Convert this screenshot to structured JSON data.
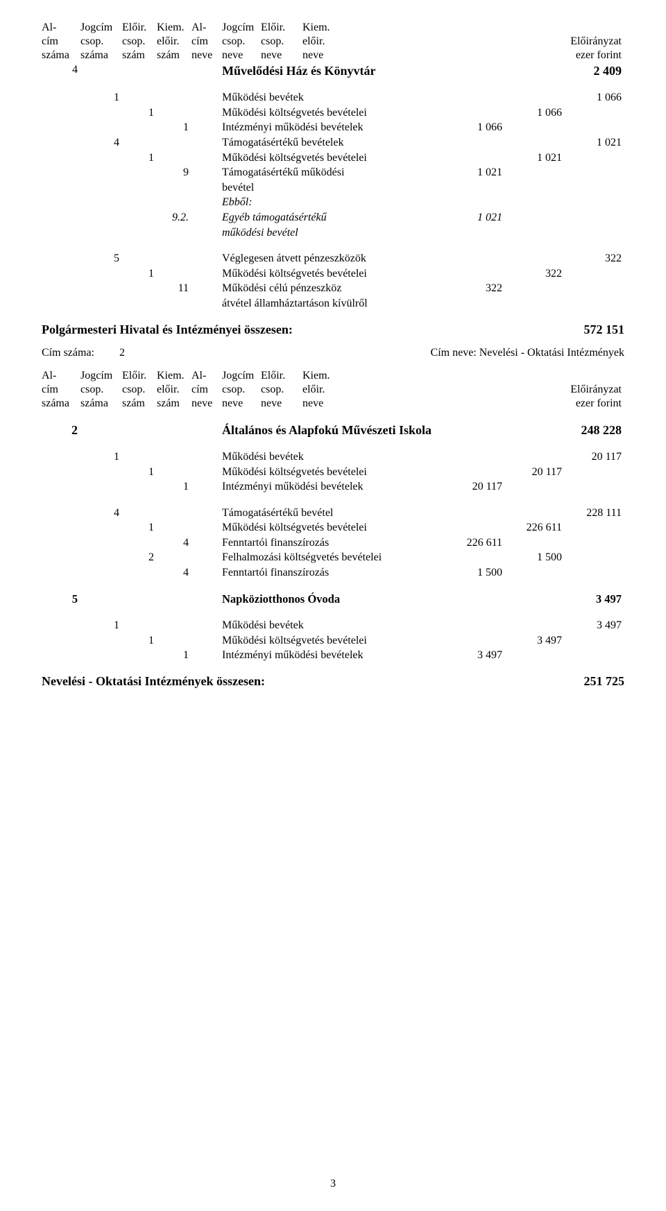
{
  "page_number": "3",
  "header": {
    "col1_l1": "Al-",
    "col1_l2": "cím",
    "col1_l3": "száma",
    "col2_l1": "Jogcím",
    "col2_l2": "csop.",
    "col2_l3": "száma",
    "col3_l1": "Előir.",
    "col3_l2": "csop.",
    "col3_l3": "szám",
    "col4_l1": "Kiem.",
    "col4_l2": "előir.",
    "col4_l3": "szám",
    "col5_l1": "Al-",
    "col5_l2": "cím",
    "col5_l3": "neve",
    "col6_l1": "Jogcím",
    "col6_l2": "csop.",
    "col6_l3": "neve",
    "col7_l1": "Előir.",
    "col7_l2": "csop.",
    "col7_l3": "neve",
    "col8_l1": "Kiem.",
    "col8_l2": "előir.",
    "col8_l3": "neve",
    "right_l2": "Előirányzat",
    "right_l3": "ezer forint"
  },
  "section4": {
    "code": "4",
    "title": "Művelődési Ház és Könyvtár",
    "total": "2 409",
    "r1": {
      "code": "1",
      "label": "Működési bevétek",
      "v": "1 066"
    },
    "r2": {
      "code": "1",
      "label": "Működési költségvetés bevételei",
      "v": "1 066"
    },
    "r3": {
      "code": "1",
      "label": "Intézményi működési bevételek",
      "v": "1 066"
    },
    "r4": {
      "code": "4",
      "label": "Támogatásértékű bevételek",
      "v": "1 021"
    },
    "r5": {
      "code": "1",
      "label": "Működési költségvetés bevételei",
      "v": "1 021"
    },
    "r6": {
      "code": "9",
      "label1": "Támogatásértékű működési",
      "label2": "bevétel",
      "v": "1 021"
    },
    "r7": {
      "label": "Ebből:"
    },
    "r8": {
      "code": "9.2.",
      "label1": "Egyéb támogatásértékű",
      "label2": "működési bevétel",
      "v": "1 021"
    }
  },
  "section5a": {
    "r1": {
      "code": "5",
      "label": "Véglegesen átvett pénzeszközök",
      "v": "322"
    },
    "r2": {
      "code": "1",
      "label": "Működési költségvetés bevételei",
      "v": "322"
    },
    "r3": {
      "code": "11",
      "label1": "Működési célú pénzeszköz",
      "label2": "átvétel államháztartáson kívülről",
      "v": "322"
    }
  },
  "summary1": {
    "label": "Polgármesteri Hivatal és Intézményei összesen:",
    "v": "572 151"
  },
  "cim2": {
    "left_label": "Cím száma:",
    "left_v": "2",
    "right": "Cím neve: Nevelési - Oktatási Intézmények"
  },
  "section2": {
    "code": "2",
    "title": "Általános és Alapfokú Művészeti Iskola",
    "total": "248 228",
    "r1": {
      "code": "1",
      "label": "Működési bevétek",
      "v": "20 117"
    },
    "r2": {
      "code": "1",
      "label": "Működési költségvetés bevételei",
      "v": "20 117"
    },
    "r3": {
      "code": "1",
      "label": "Intézményi működési bevételek",
      "v": "20 117"
    },
    "r4": {
      "code": "4",
      "label": "Támogatásértékű bevétel",
      "v": "228 111"
    },
    "r5": {
      "code": "1",
      "label": "Működési költségvetés bevételei",
      "v": "226 611"
    },
    "r6": {
      "code": "4",
      "label": "Fenntartói finanszírozás",
      "v": "226 611"
    },
    "r7": {
      "code": "2",
      "label": "Felhalmozási költségvetés bevételei",
      "v": "1 500"
    },
    "r8": {
      "code": "4",
      "label": "Fenntartói finanszírozás",
      "v": "1 500"
    }
  },
  "section5b": {
    "code": "5",
    "title": "Napköziotthonos Óvoda",
    "total": "3 497",
    "r1": {
      "code": "1",
      "label": "Működési bevétek",
      "v": "3 497"
    },
    "r2": {
      "code": "1",
      "label": "Működési költségvetés bevételei",
      "v": "3 497"
    },
    "r3": {
      "code": "1",
      "label": "Intézményi működési bevételek",
      "v": "3 497"
    }
  },
  "summary2": {
    "label": "Nevelési - Oktatási Intézmények összesen:",
    "v": "251 725"
  }
}
